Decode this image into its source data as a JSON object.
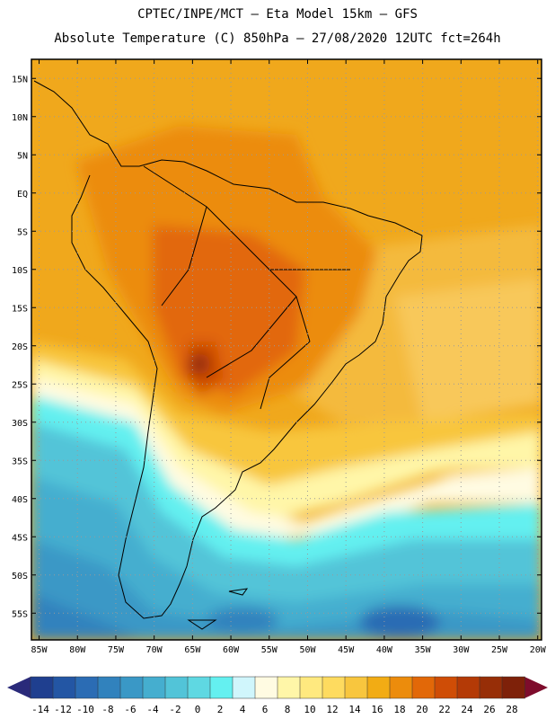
{
  "header": {
    "line1": "CPTEC/INPE/MCT –  Eta Model 15km – GFS",
    "line2": "Absolute Temperature (C) 850hPa – 27/08/2020 12UTC fct=264h"
  },
  "map": {
    "lat_labels": [
      "15N",
      "10N",
      "5N",
      "EQ",
      "5S",
      "10S",
      "15S",
      "20S",
      "25S",
      "30S",
      "35S",
      "40S",
      "45S",
      "50S",
      "55S"
    ],
    "lon_labels": [
      "85W",
      "80W",
      "75W",
      "70W",
      "65W",
      "60W",
      "55W",
      "50W",
      "45W",
      "40W",
      "35W",
      "30W",
      "25W",
      "20W"
    ]
  },
  "colorbar": {
    "labels": [
      "-14",
      "-12",
      "-10",
      "-8",
      "-6",
      "-4",
      "-2",
      "0",
      "2",
      "4",
      "6",
      "8",
      "10",
      "12",
      "14",
      "16",
      "18",
      "20",
      "22",
      "24",
      "26",
      "28"
    ],
    "colors": [
      "#1f3f8f",
      "#2356a4",
      "#2b6cb4",
      "#3182bd",
      "#3a98c6",
      "#45aecf",
      "#52c4d8",
      "#5fd8e2",
      "#64f0f0",
      "#d0f6fc",
      "#fffbe2",
      "#fff6a8",
      "#ffe97f",
      "#fedb5f",
      "#f8c63e",
      "#f2ac14",
      "#ec8c0c",
      "#e26808",
      "#cf4d06",
      "#b43a06",
      "#972e07",
      "#7e2109"
    ],
    "low_arrow_color": "#2a2a7a",
    "high_arrow_color": "#7e0c2c"
  }
}
